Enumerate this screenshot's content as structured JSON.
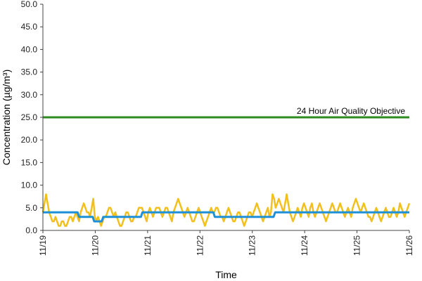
{
  "chart_data": {
    "type": "line",
    "xlabel": "Time",
    "ylabel": "Concentration (µg/m³)",
    "ylim": [
      0,
      50
    ],
    "yticks": [
      "0.0",
      "5.0",
      "10.0",
      "15.0",
      "20.0",
      "25.0",
      "30.0",
      "35.0",
      "40.0",
      "45.0",
      "50.0"
    ],
    "xticks": [
      "11/19",
      "11/20",
      "11/21",
      "11/22",
      "11/23",
      "11/24",
      "11/25",
      "11/26"
    ],
    "grid": false,
    "annotation": {
      "text": "24 Hour Air Quality Objective",
      "y": 25
    },
    "series": [
      {
        "kind": "hourly",
        "color": "#F2C01E",
        "values": [
          4,
          6,
          8,
          6,
          4,
          3,
          2,
          2,
          3,
          2,
          1,
          1,
          2,
          2,
          1,
          1,
          2,
          3,
          3,
          2,
          3,
          4,
          3,
          2,
          4,
          5,
          6,
          5,
          4,
          4,
          3,
          5,
          7,
          3,
          2,
          3,
          2,
          1,
          2,
          3,
          3,
          4,
          5,
          5,
          4,
          3,
          4,
          3,
          2,
          1,
          1,
          2,
          3,
          4,
          4,
          3,
          2,
          2,
          3,
          3,
          4,
          5,
          5,
          5,
          4,
          3,
          2,
          4,
          5,
          4,
          3,
          4,
          5,
          5,
          5,
          4,
          3,
          4,
          5,
          5,
          4,
          3,
          2,
          4,
          5,
          6,
          7,
          6,
          5,
          4,
          3,
          4,
          5,
          4,
          3,
          2,
          2,
          3,
          4,
          5,
          4,
          3,
          2,
          1,
          2,
          3,
          4,
          5,
          4,
          4,
          5,
          5,
          4,
          3,
          3,
          2,
          3,
          4,
          5,
          4,
          3,
          2,
          2,
          3,
          4,
          4,
          3,
          2,
          1,
          2,
          3,
          4,
          4,
          3,
          4,
          5,
          6,
          5,
          4,
          3,
          2,
          3,
          4,
          5,
          3,
          4,
          8,
          7,
          5,
          6,
          7,
          6,
          5,
          4,
          6,
          8,
          6,
          4,
          3,
          2,
          3,
          4,
          5,
          4,
          3,
          5,
          6,
          5,
          4,
          3,
          5,
          6,
          4,
          3,
          4,
          5,
          6,
          5,
          4,
          3,
          2,
          3,
          4,
          5,
          6,
          5,
          4,
          4,
          5,
          6,
          5,
          4,
          3,
          4,
          5,
          4,
          3,
          5,
          6,
          7,
          6,
          5,
          4,
          5,
          6,
          5,
          4,
          3,
          3,
          2,
          3,
          4,
          5,
          4,
          3,
          2,
          3,
          4,
          5,
          4,
          3,
          3,
          4,
          5,
          4,
          3,
          4,
          6,
          5,
          4,
          3,
          4,
          5,
          6
        ]
      },
      {
        "kind": "24-hour average",
        "color": "#1E90D8",
        "values": [
          4,
          4,
          4,
          4,
          4,
          4,
          4,
          4,
          4,
          4,
          4,
          4,
          4,
          4,
          4,
          4,
          4,
          4,
          4,
          4,
          4,
          4,
          4,
          4,
          3,
          3,
          3,
          3,
          3,
          3,
          3,
          3,
          3,
          3,
          2,
          2,
          2,
          2,
          2,
          2,
          3,
          3,
          3,
          3,
          3,
          3,
          3,
          3,
          3,
          3,
          3,
          3,
          3,
          3,
          3,
          3,
          3,
          3,
          3,
          3,
          3,
          3,
          3,
          3,
          3,
          3,
          4,
          4,
          4,
          4,
          4,
          4,
          4,
          4,
          4,
          4,
          4,
          4,
          4,
          4,
          4,
          4,
          4,
          4,
          4,
          4,
          4,
          4,
          4,
          4,
          4,
          4,
          4,
          4,
          4,
          4,
          4,
          4,
          4,
          4,
          4,
          4,
          4,
          4,
          4,
          4,
          4,
          4,
          4,
          4,
          4,
          4,
          4,
          4,
          3,
          3,
          3,
          3,
          3,
          3,
          3,
          3,
          3,
          3,
          3,
          3,
          3,
          3,
          3,
          3,
          3,
          3,
          3,
          3,
          3,
          3,
          3,
          3,
          3,
          3,
          3,
          3,
          3,
          3,
          3,
          3,
          3,
          3,
          3,
          3,
          3,
          3,
          3,
          3,
          4,
          4,
          4,
          4,
          4,
          4,
          4,
          4,
          4,
          4,
          4,
          4,
          4,
          4,
          4,
          4,
          4,
          4,
          4,
          4,
          4,
          4,
          4,
          4,
          4,
          4,
          4,
          4,
          4,
          4,
          4,
          4,
          4,
          4,
          4,
          4,
          4,
          4,
          4,
          4,
          4,
          4,
          4,
          4,
          4,
          4,
          4,
          4,
          4,
          4,
          4,
          4,
          4,
          4,
          4,
          4,
          4,
          4,
          4,
          4,
          4,
          4,
          4,
          4,
          4,
          4,
          4,
          4,
          4,
          4,
          4,
          4,
          4,
          4,
          4,
          4,
          4,
          4,
          4,
          4,
          4,
          4,
          4,
          4,
          4,
          4,
          4,
          4,
          4,
          4
        ]
      },
      {
        "kind": "objective",
        "color": "#2E8B1F",
        "value": 25
      }
    ]
  }
}
